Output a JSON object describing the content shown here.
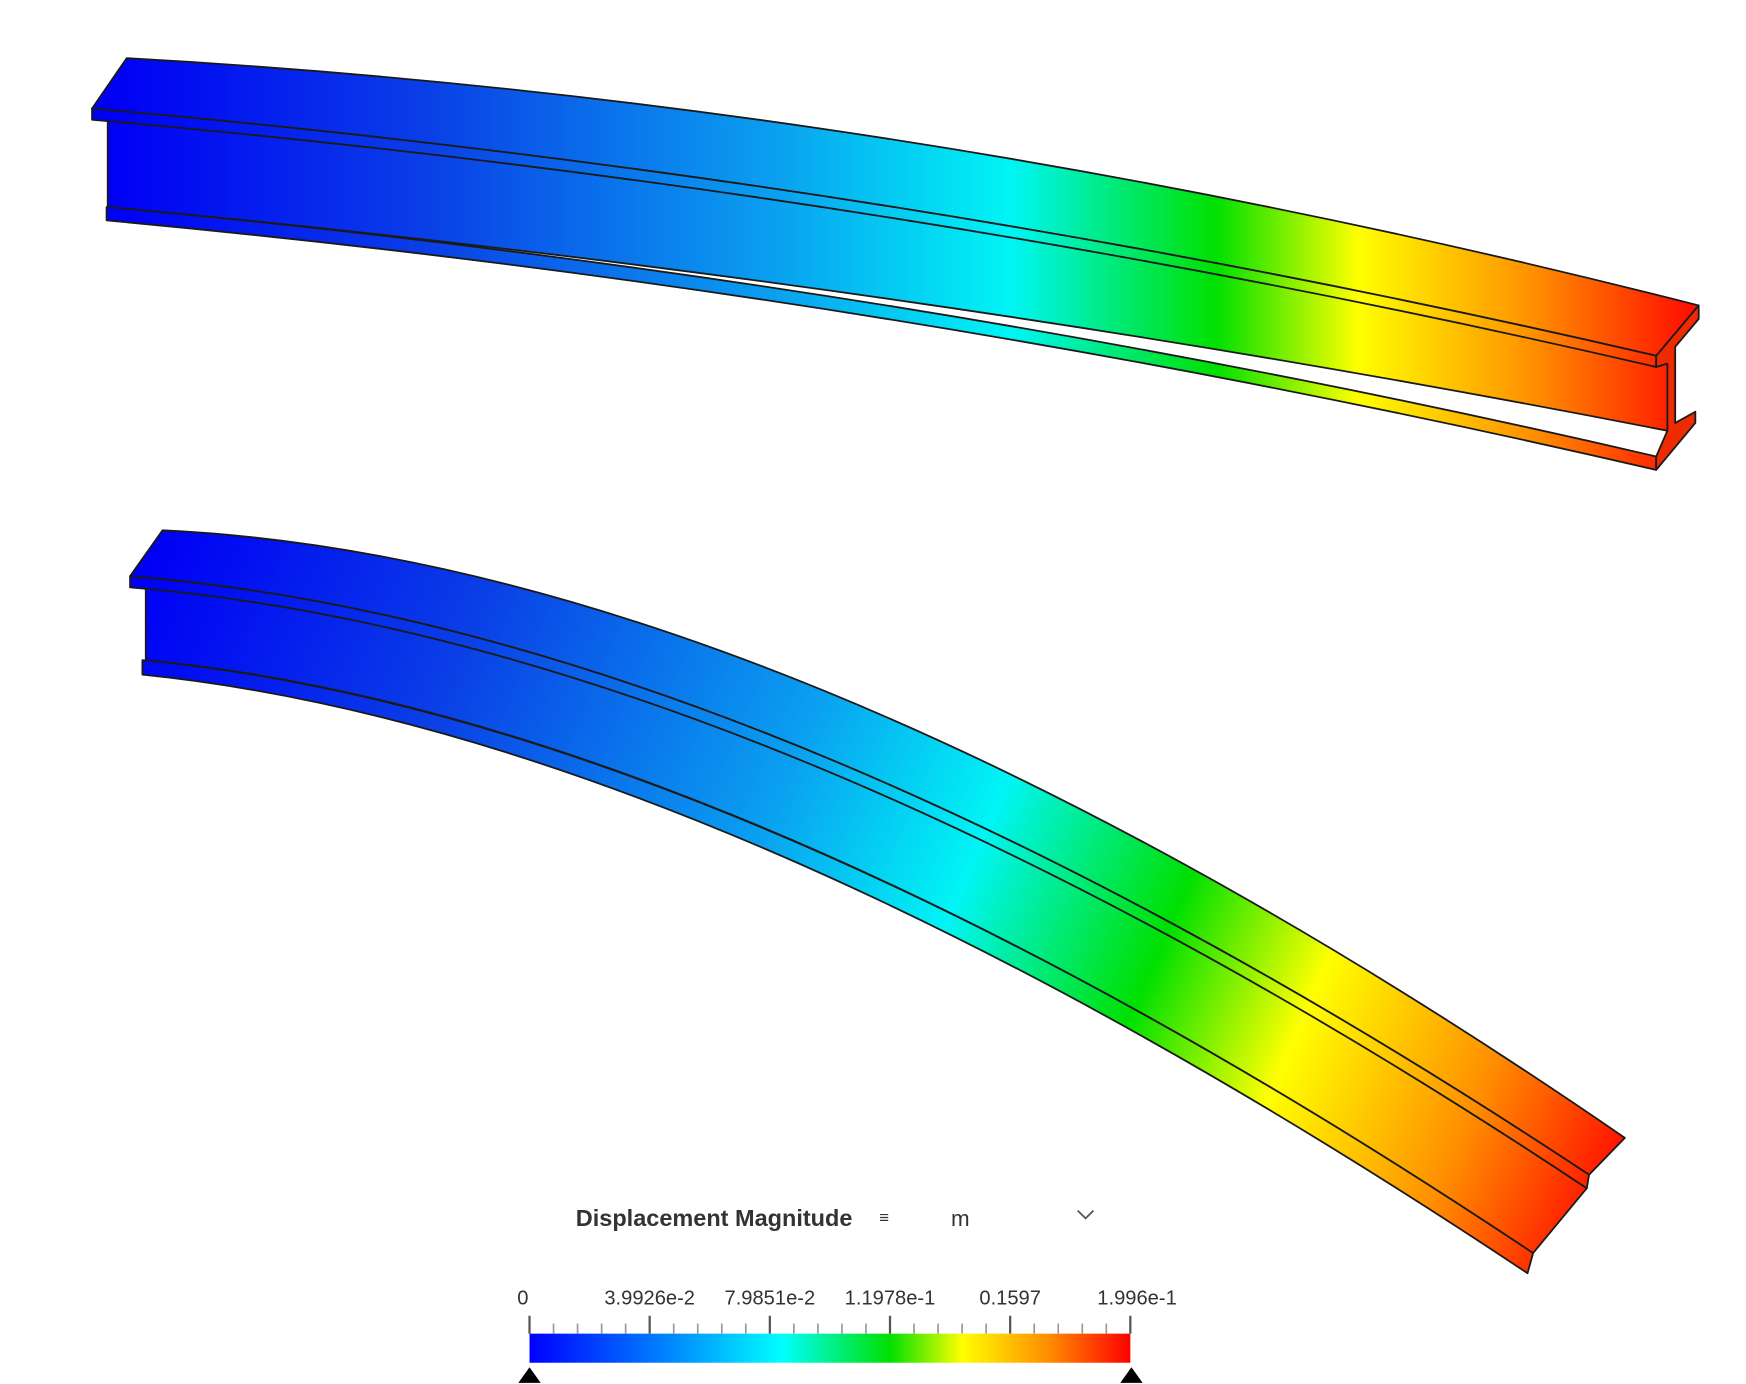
{
  "legend": {
    "title": "Displacement Magnitude",
    "unit": "m",
    "ticks": [
      "0",
      "3.9926e-2",
      "7.9851e-2",
      "1.1978e-1",
      "0.1597",
      "1.996e-1"
    ]
  }
}
